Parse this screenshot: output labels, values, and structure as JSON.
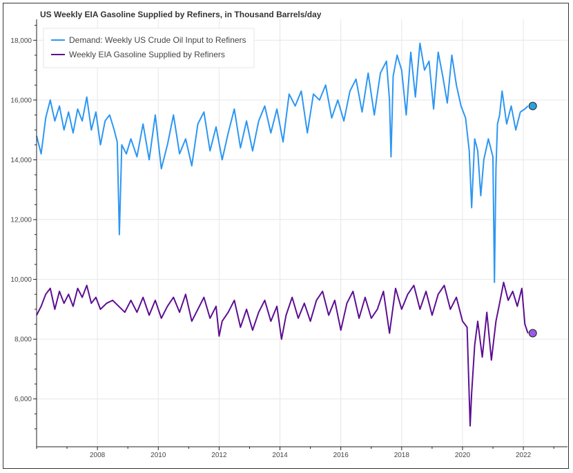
{
  "chart_data": {
    "type": "line",
    "title": "US Weekly EIA Gasoline Supplied by Refiners, in Thousand Barrels/day",
    "xlabel": "",
    "ylabel": "",
    "xlim": [
      2006.0,
      2023.45
    ],
    "ylim": [
      4400,
      18700
    ],
    "x_ticks": [
      2008,
      2010,
      2012,
      2014,
      2016,
      2018,
      2020,
      2022
    ],
    "x_tick_labels": [
      "2008",
      "2010",
      "2012",
      "2014",
      "2016",
      "2018",
      "2020",
      "2022"
    ],
    "y_ticks": [
      6000,
      8000,
      10000,
      12000,
      14000,
      16000,
      18000
    ],
    "y_tick_labels": [
      "6,000",
      "8,000",
      "10,000",
      "12,000",
      "14,000",
      "16,000",
      "18,000"
    ],
    "grid": true,
    "legend_position": "top-left",
    "series": [
      {
        "name": "Demand: Weekly US Crude Oil Input to Refiners",
        "color": "#2b96f3",
        "end_marker_color": "#29a3e0",
        "x": [
          2006.0,
          2006.15,
          2006.3,
          2006.45,
          2006.6,
          2006.75,
          2006.9,
          2007.05,
          2007.2,
          2007.35,
          2007.5,
          2007.65,
          2007.8,
          2007.95,
          2008.1,
          2008.25,
          2008.4,
          2008.55,
          2008.65,
          2008.72,
          2008.8,
          2008.95,
          2009.1,
          2009.3,
          2009.5,
          2009.7,
          2009.9,
          2010.1,
          2010.3,
          2010.5,
          2010.7,
          2010.9,
          2011.1,
          2011.3,
          2011.5,
          2011.7,
          2011.9,
          2012.1,
          2012.3,
          2012.5,
          2012.7,
          2012.9,
          2013.1,
          2013.3,
          2013.5,
          2013.7,
          2013.9,
          2014.1,
          2014.3,
          2014.5,
          2014.7,
          2014.9,
          2015.1,
          2015.3,
          2015.5,
          2015.7,
          2015.9,
          2016.1,
          2016.3,
          2016.5,
          2016.7,
          2016.9,
          2017.1,
          2017.3,
          2017.5,
          2017.6,
          2017.65,
          2017.72,
          2017.85,
          2018.0,
          2018.15,
          2018.3,
          2018.45,
          2018.6,
          2018.75,
          2018.9,
          2019.05,
          2019.2,
          2019.35,
          2019.5,
          2019.65,
          2019.8,
          2019.95,
          2020.1,
          2020.22,
          2020.3,
          2020.4,
          2020.5,
          2020.6,
          2020.7,
          2020.85,
          2021.0,
          2021.05,
          2021.1,
          2021.15,
          2021.22,
          2021.3,
          2021.45,
          2021.6,
          2021.75,
          2021.9,
          2022.05,
          2022.15
        ],
        "values": [
          14800,
          14200,
          15400,
          16000,
          15300,
          15800,
          15000,
          15600,
          14900,
          15700,
          15300,
          16100,
          15000,
          15600,
          14500,
          15300,
          15500,
          15000,
          14600,
          11500,
          14500,
          14200,
          14700,
          14100,
          15200,
          14000,
          15500,
          13700,
          14500,
          15500,
          14200,
          14700,
          13800,
          15200,
          15600,
          14300,
          15100,
          14000,
          14900,
          15700,
          14400,
          15300,
          14300,
          15300,
          15800,
          14900,
          15700,
          14600,
          16200,
          15800,
          16300,
          14900,
          16200,
          16000,
          16500,
          15400,
          16000,
          15300,
          16300,
          16700,
          15600,
          16900,
          15500,
          16900,
          17300,
          16000,
          14100,
          16800,
          17500,
          17000,
          15500,
          17600,
          16100,
          17900,
          17000,
          17300,
          15700,
          17600,
          16800,
          15900,
          17500,
          16500,
          15800,
          15400,
          14300,
          12400,
          14700,
          14300,
          12800,
          14000,
          14700,
          14100,
          9900,
          13700,
          15200,
          15500,
          16300,
          15200,
          15800,
          15000,
          15600,
          15700,
          15800
        ]
      },
      {
        "name": "Weekly EIA Gasoline Supplied by Refiners",
        "color": "#5c0e92",
        "end_marker_color": "#9b59e6",
        "x": [
          2006.0,
          2006.15,
          2006.3,
          2006.45,
          2006.6,
          2006.75,
          2006.9,
          2007.05,
          2007.2,
          2007.35,
          2007.5,
          2007.65,
          2007.8,
          2007.95,
          2008.1,
          2008.3,
          2008.5,
          2008.7,
          2008.9,
          2009.1,
          2009.3,
          2009.5,
          2009.7,
          2009.9,
          2010.1,
          2010.3,
          2010.5,
          2010.7,
          2010.9,
          2011.1,
          2011.3,
          2011.5,
          2011.7,
          2011.9,
          2012.0,
          2012.1,
          2012.3,
          2012.5,
          2012.7,
          2012.9,
          2013.1,
          2013.3,
          2013.5,
          2013.7,
          2013.9,
          2014.05,
          2014.2,
          2014.4,
          2014.6,
          2014.8,
          2015.0,
          2015.2,
          2015.4,
          2015.6,
          2015.8,
          2016.0,
          2016.2,
          2016.4,
          2016.6,
          2016.8,
          2017.0,
          2017.2,
          2017.4,
          2017.6,
          2017.8,
          2018.0,
          2018.2,
          2018.4,
          2018.6,
          2018.8,
          2019.0,
          2019.2,
          2019.4,
          2019.6,
          2019.8,
          2020.0,
          2020.15,
          2020.25,
          2020.3,
          2020.4,
          2020.5,
          2020.65,
          2020.8,
          2020.95,
          2021.1,
          2021.2,
          2021.35,
          2021.5,
          2021.65,
          2021.8,
          2021.95,
          2022.05,
          2022.15
        ],
        "values": [
          8800,
          9100,
          9500,
          9700,
          9000,
          9600,
          9200,
          9500,
          9100,
          9700,
          9400,
          9800,
          9200,
          9400,
          9000,
          9200,
          9300,
          9100,
          8900,
          9300,
          8900,
          9400,
          8800,
          9300,
          8700,
          9100,
          9400,
          8900,
          9500,
          8600,
          9000,
          9400,
          8700,
          9100,
          8100,
          8600,
          8900,
          9300,
          8400,
          9000,
          8300,
          8900,
          9300,
          8600,
          9100,
          8000,
          8800,
          9400,
          8700,
          9200,
          8600,
          9300,
          9600,
          8800,
          9300,
          8300,
          9200,
          9600,
          8700,
          9400,
          8700,
          9000,
          9600,
          8200,
          9700,
          9000,
          9500,
          9800,
          9000,
          9600,
          8800,
          9500,
          9800,
          9000,
          9400,
          8600,
          8400,
          5100,
          6200,
          7800,
          8600,
          7400,
          8900,
          7300,
          8600,
          9100,
          9900,
          9300,
          9600,
          9100,
          9700,
          8500,
          8200
        ]
      }
    ]
  }
}
